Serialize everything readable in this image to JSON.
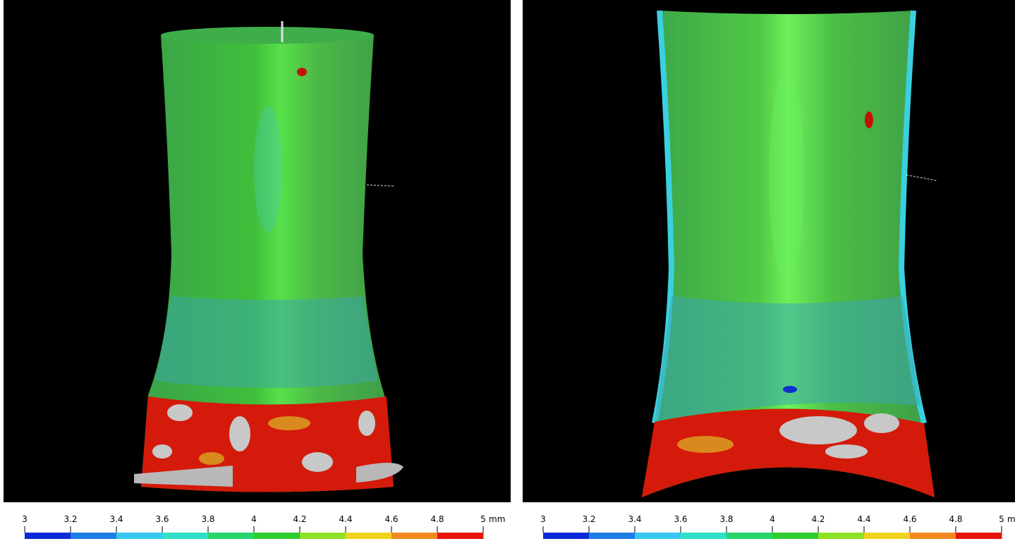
{
  "panels": [
    {
      "colorbar": {
        "ticks": [
          3,
          3.2,
          3.4,
          3.6,
          3.8,
          4,
          4.2,
          4.4,
          4.6,
          4.8,
          5
        ],
        "unit": "mm",
        "colors": [
          "#0a2ad8",
          "#1e7de6",
          "#37c8f0",
          "#2ee0c8",
          "#25d46a",
          "#2ecc2e",
          "#8ee024",
          "#f0d21e",
          "#f08a1e",
          "#e6140a"
        ]
      }
    },
    {
      "colorbar": {
        "ticks": [
          3,
          3.2,
          3.4,
          3.6,
          3.8,
          4,
          4.2,
          4.4,
          4.6,
          4.8,
          5
        ],
        "unit": "mm",
        "colors": [
          "#0a2ad8",
          "#1e7de6",
          "#37c8f0",
          "#2ee0c8",
          "#25d46a",
          "#2ecc2e",
          "#8ee024",
          "#f0d21e",
          "#f08a1e",
          "#e6140a"
        ]
      }
    }
  ]
}
